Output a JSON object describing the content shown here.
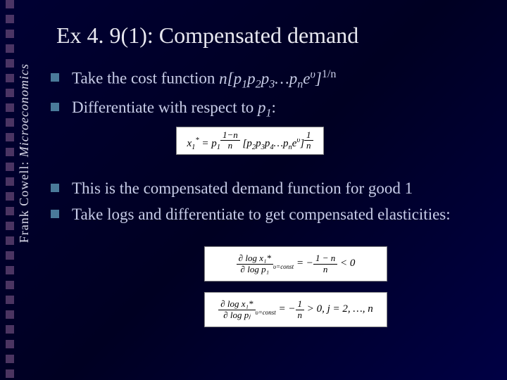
{
  "sidebar": {
    "author": "Frank Cowell: ",
    "book": "Microeconomics",
    "square_color": "#6b4a7a",
    "square_count": 26
  },
  "title": "Ex 4. 9(1): Compensated demand",
  "bullets": [
    {
      "prefix": "Take the cost function ",
      "formula": "n[p₁p₂p₃…pₙeᵘ]",
      "exponent": "1/n"
    },
    {
      "prefix": "Differentiate with respect to ",
      "formula": "p₁",
      "suffix": ":"
    },
    {
      "prefix": "This is the compensated demand function for good 1"
    },
    {
      "prefix": "Take logs and differentiate to get compensated elasticities:"
    }
  ],
  "formulas": {
    "f1_left": "x₁* = p₁",
    "f1_exp_num": "1−n",
    "f1_exp_den": "n",
    "f1_right": "[p₂p₃p₄…pₙeᵘ]",
    "f1_right_exp_num": "1",
    "f1_right_exp_den": "n",
    "f2_lhs_num": "∂ log x₁*",
    "f2_lhs_den": "∂ log p₁",
    "f2_cond": "υ=const",
    "f2_mid": " = −",
    "f2_rhs_num": "1 − n",
    "f2_rhs_den": "n",
    "f2_end": " < 0",
    "f3_lhs_num": "∂ log x₁*",
    "f3_lhs_den": "∂ log pⱼ",
    "f3_mid": " = −",
    "f3_rhs_num": "1",
    "f3_rhs_den": "n",
    "f3_end": " > 0,  j = 2, …, n"
  },
  "colors": {
    "background_start": "#000033",
    "background_end": "#000044",
    "title_color": "#e8e8f0",
    "text_color": "#c8cde8",
    "bullet_color": "#4a7a9a",
    "formula_bg": "#ffffff"
  }
}
